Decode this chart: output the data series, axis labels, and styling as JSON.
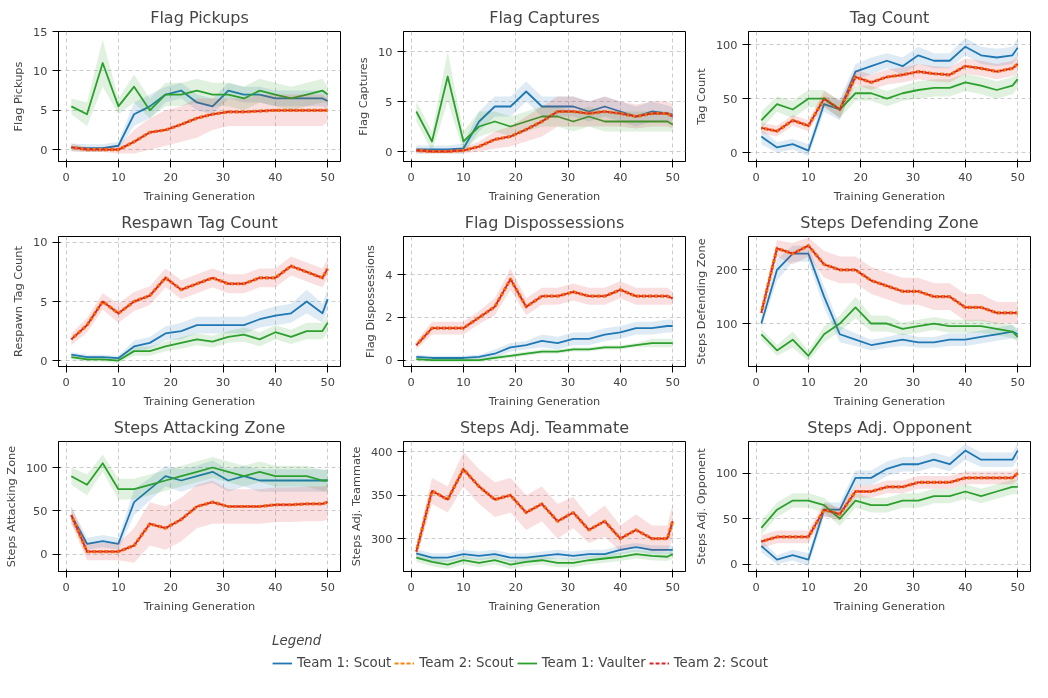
{
  "chart_data": [
    {
      "type": "line",
      "title": "Flag Pickups",
      "xlabel": "Training Generation",
      "ylabel": "Flag Pickups",
      "x": [
        1,
        4,
        7,
        10,
        13,
        16,
        19,
        22,
        25,
        28,
        31,
        34,
        37,
        40,
        43,
        46,
        49,
        50
      ],
      "xlim": [
        -1.45,
        52.45
      ],
      "xticks": [
        0,
        10,
        20,
        30,
        40,
        50
      ],
      "ylim": [
        -1.5,
        15
      ],
      "yticks": [
        0,
        5,
        10,
        15
      ],
      "grid": true,
      "legend": "bottom",
      "legend_title": "Legend",
      "series": [
        {
          "name": "Team 1: Scout",
          "color": "#1f77b4",
          "line_style": "solid",
          "values": [
            0.3,
            0.2,
            0.2,
            0.5,
            4.5,
            5.5,
            7,
            7.5,
            6,
            5.5,
            7.5,
            7,
            7,
            6.5,
            6.5,
            6.5,
            6.5,
            6.2
          ],
          "lower": [
            -0.2,
            -0.3,
            -0.3,
            0,
            3,
            4,
            6,
            6.5,
            5,
            4.5,
            6.5,
            6,
            6,
            5.5,
            5.5,
            5.5,
            5.5,
            5.2
          ],
          "upper": [
            0.8,
            0.7,
            0.7,
            1,
            6,
            7,
            8,
            8.5,
            7,
            6.5,
            8.5,
            8,
            8,
            7.5,
            7.5,
            7.5,
            7.5,
            7.2
          ]
        },
        {
          "name": "Team 2: Scout",
          "color": "#ff7f0e",
          "line_style": "dashed",
          "values": [
            0.3,
            0,
            0,
            0,
            1,
            2.2,
            2.5,
            3.2,
            4,
            4.5,
            4.8,
            4.8,
            4.9,
            5,
            5,
            5,
            5,
            5
          ]
        },
        {
          "name": "Team 1: Vaulter",
          "color": "#2ca02c",
          "line_style": "solid",
          "values": [
            5.5,
            4.5,
            11,
            5.5,
            8,
            5,
            7,
            7,
            7.5,
            7,
            7,
            6.5,
            7.5,
            7,
            6.5,
            7,
            7.5,
            7
          ],
          "lower": [
            4.5,
            3,
            8,
            4.5,
            6,
            4,
            5.5,
            5.5,
            6,
            5.5,
            5.5,
            5,
            6,
            5.5,
            5,
            5.5,
            6,
            6
          ],
          "upper": [
            6.5,
            6,
            14,
            6.5,
            9.5,
            6.5,
            8.5,
            8.5,
            9,
            8.5,
            8.5,
            8,
            9,
            8.5,
            8,
            8.5,
            9,
            8
          ]
        },
        {
          "name": "Team 2: Scout",
          "color": "#d62728",
          "line_style": "dashed",
          "values": [
            0.3,
            0,
            0,
            0,
            1,
            2.2,
            2.5,
            3.2,
            4,
            4.5,
            4.8,
            4.8,
            4.9,
            5,
            5,
            5,
            5,
            5
          ],
          "lower": [
            -0.2,
            -0.3,
            -0.3,
            -0.5,
            -0.5,
            0,
            0.5,
            1,
            1.5,
            2.5,
            3,
            3,
            3,
            3,
            3,
            3,
            3,
            3.5
          ],
          "upper": [
            0.8,
            0.3,
            0.3,
            0.5,
            2.5,
            4,
            5,
            5.5,
            6.5,
            6.5,
            6.5,
            6.5,
            7,
            7,
            7,
            7,
            7,
            6.5
          ]
        }
      ]
    },
    {
      "type": "line",
      "title": "Flag Captures",
      "xlabel": "Training Generation",
      "ylabel": "Flag Captures",
      "x": [
        1,
        4,
        7,
        10,
        13,
        16,
        19,
        22,
        25,
        28,
        31,
        34,
        37,
        40,
        43,
        46,
        49,
        50
      ],
      "xlim": [
        -1.45,
        52.45
      ],
      "xticks": [
        0,
        10,
        20,
        30,
        40,
        50
      ],
      "ylim": [
        -1,
        12
      ],
      "yticks": [
        0,
        5,
        10
      ],
      "grid": true,
      "series": [
        {
          "color": "#1f77b4",
          "line_style": "solid",
          "values": [
            0.2,
            0.2,
            0.2,
            0.3,
            3,
            4.5,
            4.5,
            6,
            4.5,
            4.5,
            4.5,
            4,
            4.5,
            4,
            3.5,
            4,
            3.8,
            3.7
          ],
          "lower": [
            -0.2,
            -0.2,
            -0.2,
            -0.2,
            2,
            3.5,
            3.5,
            5,
            3.5,
            3.5,
            3.5,
            3,
            3.5,
            3,
            2.5,
            3,
            3,
            3
          ],
          "upper": [
            0.6,
            0.6,
            0.6,
            0.8,
            4,
            5.5,
            5.5,
            7,
            5.5,
            5.5,
            5.5,
            5,
            5.5,
            5,
            4.5,
            5,
            4.6,
            4.4
          ]
        },
        {
          "color": "#ff7f0e",
          "line_style": "dashed",
          "values": [
            0.1,
            0,
            0,
            0.1,
            0.5,
            1.2,
            1.5,
            2.2,
            3,
            4,
            4,
            3.8,
            4,
            3.8,
            3.5,
            3.8,
            3.8,
            3.5
          ]
        },
        {
          "color": "#2ca02c",
          "line_style": "solid",
          "values": [
            4,
            1,
            7.5,
            1,
            2.5,
            3,
            2.5,
            3,
            3.5,
            3.5,
            3,
            3.5,
            3,
            3,
            3,
            3,
            3,
            2.7
          ],
          "lower": [
            3,
            0,
            5,
            0,
            1.5,
            2,
            1.5,
            2,
            2.5,
            2.5,
            2,
            2.5,
            2,
            2,
            2,
            2,
            2,
            2
          ],
          "upper": [
            5,
            2,
            10,
            2,
            4,
            4,
            3.5,
            4,
            4.5,
            4.5,
            4,
            4.5,
            4,
            4,
            4,
            4,
            4,
            3.5
          ]
        },
        {
          "color": "#d62728",
          "line_style": "dashed",
          "values": [
            0.1,
            0,
            0,
            0.1,
            0.5,
            1.2,
            1.5,
            2.2,
            3,
            4,
            4,
            3.8,
            4,
            3.8,
            3.5,
            3.8,
            3.8,
            3.5
          ],
          "lower": [
            -0.2,
            -0.2,
            -0.2,
            -0.2,
            0,
            0.3,
            0.5,
            1,
            1.5,
            2.5,
            2.5,
            2.5,
            2.5,
            2.5,
            2.3,
            2.5,
            2.5,
            2.3
          ],
          "upper": [
            0.4,
            0.2,
            0.2,
            0.4,
            1,
            2,
            2.5,
            3.5,
            4.5,
            5.5,
            5.5,
            5,
            5.5,
            5,
            4.7,
            5,
            5,
            4.7
          ]
        }
      ]
    },
    {
      "type": "line",
      "title": "Tag Count",
      "xlabel": "Training Generation",
      "ylabel": "Tag Count",
      "x": [
        1,
        4,
        7,
        10,
        13,
        16,
        19,
        22,
        25,
        28,
        31,
        34,
        37,
        40,
        43,
        46,
        49,
        50
      ],
      "xlim": [
        -1.45,
        52.45
      ],
      "xticks": [
        0,
        10,
        20,
        30,
        40,
        50
      ],
      "ylim": [
        -8,
        112
      ],
      "yticks": [
        0,
        50,
        100
      ],
      "grid": true,
      "series": [
        {
          "color": "#1f77b4",
          "line_style": "solid",
          "values": [
            15,
            5,
            8,
            2,
            45,
            40,
            75,
            80,
            85,
            80,
            90,
            85,
            85,
            98,
            90,
            88,
            90,
            97
          ],
          "lower": [
            8,
            0,
            3,
            -3,
            38,
            30,
            68,
            72,
            78,
            72,
            82,
            78,
            78,
            90,
            82,
            80,
            82,
            88
          ],
          "upper": [
            22,
            10,
            13,
            8,
            52,
            50,
            82,
            88,
            92,
            88,
            98,
            92,
            92,
            106,
            98,
            96,
            98,
            106
          ]
        },
        {
          "color": "#ff7f0e",
          "line_style": "dashed",
          "values": [
            23,
            20,
            30,
            25,
            50,
            40,
            70,
            65,
            70,
            72,
            75,
            73,
            72,
            80,
            78,
            75,
            78,
            82
          ]
        },
        {
          "color": "#2ca02c",
          "line_style": "solid",
          "values": [
            30,
            45,
            40,
            50,
            50,
            40,
            55,
            55,
            50,
            55,
            58,
            60,
            60,
            65,
            62,
            58,
            62,
            68
          ],
          "lower": [
            22,
            38,
            32,
            42,
            42,
            32,
            48,
            48,
            43,
            48,
            50,
            52,
            52,
            57,
            54,
            50,
            54,
            60
          ],
          "upper": [
            38,
            52,
            48,
            58,
            58,
            48,
            62,
            62,
            57,
            62,
            66,
            68,
            68,
            73,
            70,
            66,
            70,
            76
          ]
        },
        {
          "color": "#d62728",
          "line_style": "dashed",
          "values": [
            23,
            20,
            30,
            25,
            50,
            40,
            70,
            65,
            70,
            72,
            75,
            73,
            72,
            80,
            78,
            75,
            78,
            82
          ],
          "lower": [
            18,
            15,
            25,
            20,
            43,
            32,
            63,
            58,
            63,
            65,
            68,
            66,
            65,
            73,
            71,
            68,
            71,
            75
          ],
          "upper": [
            28,
            25,
            35,
            30,
            57,
            48,
            77,
            72,
            77,
            79,
            82,
            80,
            79,
            87,
            85,
            82,
            85,
            89
          ]
        }
      ]
    },
    {
      "type": "line",
      "title": "Respawn Tag Count",
      "xlabel": "Training Generation",
      "ylabel": "Respawn Tag Count",
      "x": [
        1,
        4,
        7,
        10,
        13,
        16,
        19,
        22,
        25,
        28,
        31,
        34,
        37,
        40,
        43,
        46,
        49,
        50
      ],
      "xlim": [
        -1.45,
        52.45
      ],
      "xticks": [
        0,
        10,
        20,
        30,
        40,
        50
      ],
      "ylim": [
        -0.5,
        10.5
      ],
      "yticks": [
        0,
        5,
        10
      ],
      "grid": true,
      "series": [
        {
          "color": "#1f77b4",
          "line_style": "solid",
          "values": [
            0.5,
            0.3,
            0.3,
            0.2,
            1.2,
            1.5,
            2.3,
            2.5,
            3,
            3,
            3,
            3,
            3.5,
            3.8,
            4,
            5,
            4,
            5.2
          ],
          "lower": [
            0.3,
            0.1,
            0.1,
            0,
            0.7,
            1,
            1.7,
            1.8,
            2.3,
            2.3,
            2.3,
            2.3,
            2.8,
            3,
            3.2,
            4,
            3.2,
            4.3
          ],
          "upper": [
            0.7,
            0.5,
            0.5,
            0.4,
            1.7,
            2,
            2.9,
            3.2,
            3.7,
            3.7,
            3.7,
            3.7,
            4.2,
            4.6,
            4.8,
            6,
            4.8,
            6.1
          ]
        },
        {
          "color": "#ff7f0e",
          "line_style": "dashed",
          "values": [
            1.8,
            3,
            5,
            4,
            5,
            5.5,
            7,
            6,
            6.5,
            7,
            6.5,
            6.5,
            7,
            7,
            8,
            7.5,
            7,
            7.8
          ]
        },
        {
          "color": "#2ca02c",
          "line_style": "solid",
          "values": [
            0.3,
            0.1,
            0.1,
            0,
            0.8,
            0.8,
            1.2,
            1.5,
            1.8,
            1.6,
            2,
            2.2,
            1.8,
            2.4,
            2,
            2.5,
            2.5,
            3.2
          ],
          "lower": [
            0.1,
            -0.1,
            -0.1,
            -0.2,
            0.4,
            0.4,
            0.8,
            1,
            1.3,
            1.1,
            1.5,
            1.6,
            1.2,
            1.8,
            1.4,
            1.8,
            1.8,
            2.4
          ],
          "upper": [
            0.5,
            0.3,
            0.3,
            0.2,
            1.2,
            1.2,
            1.6,
            2,
            2.3,
            2.1,
            2.5,
            2.8,
            2.4,
            3,
            2.6,
            3.2,
            3.2,
            4
          ]
        },
        {
          "color": "#d62728",
          "line_style": "dashed",
          "values": [
            1.8,
            3,
            5,
            4,
            5,
            5.5,
            7,
            6,
            6.5,
            7,
            6.5,
            6.5,
            7,
            7,
            8,
            7.5,
            7,
            7.8
          ],
          "lower": [
            1.3,
            2.4,
            4.3,
            3.2,
            4.2,
            4.7,
            6.2,
            5.2,
            5.7,
            6.2,
            5.7,
            5.7,
            6.2,
            6.2,
            7.2,
            6.7,
            6.2,
            7
          ],
          "upper": [
            2.3,
            3.6,
            5.7,
            4.8,
            5.8,
            6.3,
            7.8,
            6.8,
            7.3,
            7.8,
            7.3,
            7.3,
            7.8,
            7.8,
            8.8,
            8.3,
            7.8,
            8.6
          ]
        }
      ]
    },
    {
      "type": "line",
      "title": "Flag Dispossessions",
      "xlabel": "Training Generation",
      "ylabel": "Flag Dispossessions",
      "x": [
        1,
        4,
        7,
        10,
        13,
        16,
        19,
        22,
        25,
        28,
        31,
        34,
        37,
        40,
        43,
        46,
        49,
        50
      ],
      "xlim": [
        -1.45,
        52.45
      ],
      "xticks": [
        0,
        10,
        20,
        30,
        40,
        50
      ],
      "ylim": [
        -0.3,
        5.8
      ],
      "yticks": [
        0,
        2,
        4
      ],
      "grid": true,
      "series": [
        {
          "color": "#1f77b4",
          "line_style": "solid",
          "values": [
            0.15,
            0.1,
            0.1,
            0.1,
            0.15,
            0.3,
            0.6,
            0.7,
            0.9,
            0.8,
            1,
            1,
            1.2,
            1.3,
            1.5,
            1.5,
            1.6,
            1.6
          ],
          "lower": [
            0.05,
            0,
            0,
            0,
            0.05,
            0.1,
            0.4,
            0.5,
            0.6,
            0.5,
            0.7,
            0.7,
            0.9,
            1,
            1.2,
            1.2,
            1.3,
            1.3
          ],
          "upper": [
            0.25,
            0.2,
            0.2,
            0.2,
            0.25,
            0.5,
            0.8,
            0.9,
            1.2,
            1.1,
            1.3,
            1.3,
            1.5,
            1.6,
            1.8,
            1.8,
            1.9,
            1.9
          ]
        },
        {
          "color": "#ff7f0e",
          "line_style": "dashed",
          "values": [
            0.7,
            1.5,
            1.5,
            1.5,
            2,
            2.5,
            3.8,
            2.5,
            3,
            3,
            3.2,
            3,
            3,
            3.3,
            3,
            3,
            3,
            2.9
          ]
        },
        {
          "color": "#2ca02c",
          "line_style": "solid",
          "values": [
            0.05,
            0,
            0,
            0,
            0,
            0.1,
            0.2,
            0.3,
            0.4,
            0.4,
            0.5,
            0.5,
            0.6,
            0.6,
            0.7,
            0.8,
            0.8,
            0.8
          ],
          "lower": [
            -0.05,
            -0.1,
            -0.1,
            -0.1,
            -0.1,
            0,
            0.1,
            0.2,
            0.3,
            0.3,
            0.4,
            0.4,
            0.5,
            0.5,
            0.6,
            0.6,
            0.6,
            0.6
          ],
          "upper": [
            0.15,
            0.1,
            0.1,
            0.1,
            0.1,
            0.2,
            0.3,
            0.4,
            0.5,
            0.5,
            0.6,
            0.6,
            0.7,
            0.7,
            0.8,
            1,
            1,
            1
          ]
        },
        {
          "color": "#d62728",
          "line_style": "dashed",
          "values": [
            0.7,
            1.5,
            1.5,
            1.5,
            2,
            2.5,
            3.8,
            2.5,
            3,
            3,
            3.2,
            3,
            3,
            3.3,
            3,
            3,
            3,
            2.9
          ],
          "lower": [
            0.5,
            1.2,
            1.2,
            1.2,
            1.7,
            2.1,
            3.3,
            2.1,
            2.6,
            2.6,
            2.8,
            2.6,
            2.6,
            2.9,
            2.6,
            2.6,
            2.6,
            2.6
          ],
          "upper": [
            0.9,
            1.8,
            1.8,
            1.8,
            2.3,
            2.9,
            4.3,
            2.9,
            3.4,
            3.4,
            3.6,
            3.4,
            3.4,
            3.7,
            3.4,
            3.4,
            3.4,
            3.2
          ]
        }
      ]
    },
    {
      "type": "line",
      "title": "Steps Defending Zone",
      "xlabel": "Training Generation",
      "ylabel": "Steps Defending Zone",
      "x": [
        1,
        4,
        7,
        10,
        13,
        16,
        19,
        22,
        25,
        28,
        31,
        34,
        37,
        40,
        43,
        46,
        49,
        50
      ],
      "xlim": [
        -1.45,
        52.45
      ],
      "xticks": [
        0,
        10,
        20,
        30,
        40,
        50
      ],
      "ylim": [
        20,
        262
      ],
      "yticks": [
        100,
        200
      ],
      "grid": true,
      "series": [
        {
          "color": "#1f77b4",
          "line_style": "solid",
          "values": [
            100,
            200,
            230,
            230,
            150,
            80,
            70,
            60,
            65,
            70,
            65,
            65,
            70,
            70,
            75,
            80,
            85,
            80
          ],
          "lower": [
            90,
            180,
            215,
            215,
            130,
            65,
            58,
            50,
            55,
            58,
            55,
            55,
            58,
            58,
            63,
            68,
            72,
            70
          ],
          "upper": [
            110,
            220,
            245,
            245,
            170,
            95,
            82,
            70,
            75,
            82,
            75,
            75,
            82,
            82,
            87,
            92,
            98,
            90
          ]
        },
        {
          "color": "#ff7f0e",
          "line_style": "dashed",
          "values": [
            120,
            240,
            230,
            245,
            210,
            200,
            200,
            180,
            170,
            160,
            160,
            150,
            150,
            130,
            130,
            120,
            120,
            120
          ]
        },
        {
          "color": "#2ca02c",
          "line_style": "solid",
          "values": [
            80,
            50,
            70,
            40,
            80,
            100,
            130,
            100,
            100,
            90,
            95,
            100,
            95,
            95,
            95,
            90,
            85,
            75
          ],
          "lower": [
            70,
            40,
            55,
            30,
            65,
            85,
            110,
            85,
            85,
            78,
            83,
            88,
            83,
            83,
            83,
            78,
            73,
            65
          ],
          "upper": [
            90,
            60,
            85,
            50,
            95,
            115,
            150,
            115,
            115,
            102,
            107,
            112,
            107,
            107,
            107,
            102,
            97,
            85
          ]
        },
        {
          "color": "#d62728",
          "line_style": "dashed",
          "values": [
            120,
            240,
            230,
            245,
            210,
            200,
            200,
            180,
            170,
            160,
            160,
            150,
            150,
            130,
            130,
            120,
            120,
            120
          ],
          "lower": [
            110,
            225,
            210,
            225,
            185,
            175,
            175,
            155,
            145,
            135,
            135,
            125,
            125,
            105,
            105,
            100,
            100,
            100
          ],
          "upper": [
            130,
            255,
            250,
            260,
            235,
            225,
            225,
            205,
            195,
            185,
            185,
            175,
            175,
            155,
            155,
            140,
            140,
            140
          ]
        }
      ]
    },
    {
      "type": "line",
      "title": "Steps Attacking Zone",
      "xlabel": "Training Generation",
      "ylabel": "Steps Attacking Zone",
      "x": [
        1,
        4,
        7,
        10,
        13,
        16,
        19,
        22,
        25,
        28,
        31,
        34,
        37,
        40,
        43,
        46,
        49,
        50
      ],
      "xlim": [
        -1.45,
        52.45
      ],
      "xticks": [
        0,
        10,
        20,
        30,
        40,
        50
      ],
      "ylim": [
        -20,
        130
      ],
      "yticks": [
        0,
        50,
        100
      ],
      "grid": true,
      "series": [
        {
          "color": "#1f77b4",
          "line_style": "solid",
          "values": [
            45,
            12,
            15,
            12,
            60,
            75,
            90,
            85,
            90,
            95,
            85,
            90,
            85,
            85,
            85,
            85,
            85,
            85
          ],
          "lower": [
            35,
            5,
            8,
            5,
            45,
            62,
            78,
            72,
            78,
            82,
            72,
            78,
            72,
            72,
            72,
            72,
            72,
            72
          ],
          "upper": [
            55,
            19,
            22,
            19,
            75,
            88,
            102,
            98,
            102,
            108,
            98,
            102,
            98,
            98,
            98,
            98,
            98,
            98
          ]
        },
        {
          "color": "#ff7f0e",
          "line_style": "dashed",
          "values": [
            45,
            3,
            3,
            3,
            10,
            35,
            30,
            40,
            55,
            60,
            55,
            55,
            55,
            57,
            57,
            58,
            58,
            60
          ]
        },
        {
          "color": "#2ca02c",
          "line_style": "solid",
          "values": [
            90,
            80,
            105,
            75,
            75,
            80,
            85,
            90,
            95,
            100,
            95,
            90,
            95,
            90,
            90,
            90,
            85,
            85
          ],
          "lower": [
            80,
            68,
            95,
            63,
            63,
            68,
            73,
            78,
            83,
            88,
            83,
            78,
            83,
            78,
            78,
            78,
            73,
            73
          ],
          "upper": [
            100,
            92,
            115,
            87,
            87,
            92,
            97,
            102,
            107,
            112,
            107,
            102,
            107,
            102,
            102,
            102,
            97,
            97
          ]
        },
        {
          "color": "#d62728",
          "line_style": "dashed",
          "values": [
            45,
            3,
            3,
            3,
            10,
            35,
            30,
            40,
            55,
            60,
            55,
            55,
            55,
            57,
            57,
            58,
            58,
            60
          ],
          "lower": [
            35,
            -7,
            -7,
            -7,
            -10,
            10,
            5,
            15,
            30,
            35,
            35,
            35,
            35,
            37,
            37,
            38,
            38,
            40
          ],
          "upper": [
            55,
            13,
            13,
            13,
            30,
            60,
            55,
            65,
            80,
            85,
            75,
            75,
            75,
            77,
            77,
            78,
            78,
            80
          ]
        }
      ]
    },
    {
      "type": "line",
      "title": "Steps Adj. Teammate",
      "xlabel": "Training Generation",
      "ylabel": "Steps Adj. Teammate",
      "x": [
        1,
        4,
        7,
        10,
        13,
        16,
        19,
        22,
        25,
        28,
        31,
        34,
        37,
        40,
        43,
        46,
        49,
        50
      ],
      "xlim": [
        -1.45,
        52.45
      ],
      "xticks": [
        0,
        10,
        20,
        30,
        40,
        50
      ],
      "ylim": [
        262,
        412
      ],
      "yticks": [
        300,
        350,
        400
      ],
      "grid": true,
      "series": [
        {
          "color": "#1f77b4",
          "line_style": "solid",
          "values": [
            283,
            278,
            278,
            282,
            280,
            282,
            278,
            278,
            280,
            282,
            280,
            282,
            282,
            287,
            290,
            287,
            287,
            287
          ],
          "lower": [
            278,
            273,
            273,
            277,
            275,
            277,
            273,
            273,
            275,
            277,
            275,
            277,
            277,
            282,
            285,
            282,
            282,
            282
          ],
          "upper": [
            288,
            283,
            283,
            287,
            285,
            287,
            283,
            283,
            285,
            287,
            285,
            287,
            287,
            292,
            295,
            292,
            292,
            292
          ]
        },
        {
          "color": "#ff7f0e",
          "line_style": "dashed",
          "values": [
            285,
            355,
            345,
            380,
            360,
            345,
            350,
            330,
            340,
            320,
            330,
            310,
            320,
            300,
            310,
            300,
            300,
            320
          ]
        },
        {
          "color": "#2ca02c",
          "line_style": "solid",
          "values": [
            278,
            273,
            270,
            275,
            272,
            275,
            270,
            273,
            275,
            272,
            272,
            275,
            277,
            279,
            282,
            280,
            279,
            282
          ],
          "lower": [
            273,
            268,
            265,
            270,
            267,
            270,
            265,
            268,
            270,
            267,
            267,
            270,
            272,
            274,
            277,
            275,
            274,
            277
          ],
          "upper": [
            283,
            278,
            275,
            280,
            277,
            280,
            275,
            278,
            280,
            277,
            277,
            280,
            282,
            284,
            287,
            285,
            284,
            287
          ]
        },
        {
          "color": "#d62728",
          "line_style": "dashed",
          "values": [
            285,
            355,
            345,
            380,
            360,
            345,
            350,
            330,
            340,
            320,
            330,
            310,
            320,
            300,
            310,
            300,
            300,
            320
          ],
          "lower": [
            278,
            340,
            330,
            360,
            340,
            325,
            330,
            310,
            320,
            300,
            312,
            295,
            302,
            285,
            292,
            285,
            285,
            300
          ],
          "upper": [
            292,
            370,
            360,
            400,
            380,
            365,
            370,
            350,
            360,
            340,
            348,
            325,
            338,
            315,
            328,
            315,
            315,
            340
          ]
        }
      ]
    },
    {
      "type": "line",
      "title": "Steps Adj. Opponent",
      "xlabel": "Training Generation",
      "ylabel": "Steps Adj. Opponent",
      "x": [
        1,
        4,
        7,
        10,
        13,
        16,
        19,
        22,
        25,
        28,
        31,
        34,
        37,
        40,
        43,
        46,
        49,
        50
      ],
      "xlim": [
        -1.45,
        52.45
      ],
      "xticks": [
        0,
        10,
        20,
        30,
        40,
        50
      ],
      "ylim": [
        -8,
        135
      ],
      "yticks": [
        0,
        50,
        100
      ],
      "grid": true,
      "series": [
        {
          "color": "#1f77b4",
          "line_style": "solid",
          "values": [
            20,
            5,
            10,
            5,
            60,
            60,
            95,
            95,
            105,
            110,
            110,
            115,
            110,
            125,
            115,
            115,
            115,
            125
          ],
          "lower": [
            13,
            0,
            4,
            -2,
            52,
            52,
            87,
            87,
            97,
            102,
            102,
            107,
            102,
            115,
            107,
            107,
            107,
            115
          ],
          "upper": [
            27,
            10,
            16,
            12,
            68,
            68,
            103,
            103,
            113,
            118,
            118,
            123,
            118,
            132,
            123,
            123,
            123,
            133
          ]
        },
        {
          "color": "#ff7f0e",
          "line_style": "dashed",
          "values": [
            25,
            30,
            30,
            30,
            60,
            55,
            80,
            80,
            85,
            85,
            90,
            90,
            90,
            95,
            95,
            95,
            95,
            100
          ]
        },
        {
          "color": "#2ca02c",
          "line_style": "solid",
          "values": [
            40,
            60,
            70,
            70,
            65,
            50,
            70,
            65,
            65,
            70,
            70,
            75,
            75,
            80,
            75,
            80,
            85,
            85
          ],
          "lower": [
            32,
            52,
            62,
            62,
            57,
            42,
            62,
            57,
            57,
            62,
            62,
            67,
            67,
            72,
            67,
            72,
            77,
            77
          ],
          "upper": [
            48,
            68,
            78,
            78,
            73,
            58,
            78,
            73,
            73,
            78,
            78,
            83,
            83,
            88,
            83,
            88,
            93,
            93
          ]
        },
        {
          "color": "#d62728",
          "line_style": "dashed",
          "values": [
            25,
            30,
            30,
            30,
            60,
            55,
            80,
            80,
            85,
            85,
            90,
            90,
            90,
            95,
            95,
            95,
            95,
            100
          ],
          "lower": [
            18,
            23,
            23,
            23,
            53,
            48,
            73,
            73,
            78,
            78,
            83,
            83,
            83,
            88,
            88,
            88,
            88,
            93
          ],
          "upper": [
            32,
            37,
            37,
            37,
            67,
            62,
            87,
            87,
            92,
            92,
            97,
            97,
            97,
            102,
            102,
            102,
            102,
            107
          ]
        }
      ]
    }
  ]
}
